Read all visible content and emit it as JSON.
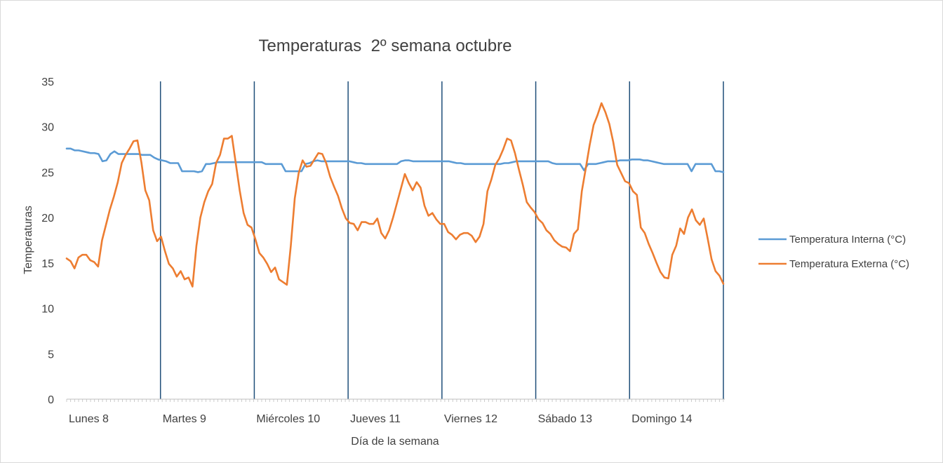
{
  "chart_data": {
    "type": "line",
    "title": "Temperaturas  2º semana octubre",
    "xlabel": "Día de la semana",
    "ylabel": "Temperaturas",
    "ylim": [
      0,
      35
    ],
    "yticks": [
      0,
      5,
      10,
      15,
      20,
      25,
      30,
      35
    ],
    "grid": false,
    "legend_position": "right",
    "day_labels": [
      "Lunes 8",
      "Martes 9",
      "Miércoles 10",
      "Jueves 11",
      "Viernes 12",
      "Sábado 13",
      "Domingo 14"
    ],
    "day_separators": true,
    "series": [
      {
        "name": "Temperatura Interna (°C)",
        "color": "#5b9bd5",
        "values": [
          27.6,
          27.6,
          27.4,
          27.4,
          27.3,
          27.2,
          27.1,
          27.1,
          27.0,
          26.2,
          26.3,
          27.0,
          27.3,
          27.0,
          27.0,
          27.0,
          27.0,
          27.0,
          27.0,
          26.9,
          26.9,
          26.9,
          26.6,
          26.4,
          26.3,
          26.2,
          26.0,
          26.0,
          26.0,
          25.1,
          25.1,
          25.1,
          25.1,
          25.0,
          25.1,
          25.9,
          25.9,
          26.0,
          26.1,
          26.1,
          26.1,
          26.1,
          26.1,
          26.1,
          26.1,
          26.1,
          26.1,
          26.1,
          26.1,
          26.1,
          25.9,
          25.9,
          25.9,
          25.9,
          25.9,
          25.1,
          25.1,
          25.1,
          25.1,
          25.1,
          25.9,
          26.0,
          26.2,
          26.3,
          26.2,
          26.2,
          26.2,
          26.2,
          26.2,
          26.2,
          26.2,
          26.2,
          26.1,
          26.0,
          26.0,
          25.9,
          25.9,
          25.9,
          25.9,
          25.9,
          25.9,
          25.9,
          25.9,
          25.9,
          26.2,
          26.3,
          26.3,
          26.2,
          26.2,
          26.2,
          26.2,
          26.2,
          26.2,
          26.2,
          26.2,
          26.2,
          26.2,
          26.1,
          26.0,
          26.0,
          25.9,
          25.9,
          25.9,
          25.9,
          25.9,
          25.9,
          25.9,
          25.9,
          25.9,
          25.9,
          26.0,
          26.0,
          26.1,
          26.2,
          26.2,
          26.2,
          26.2,
          26.2,
          26.2,
          26.2,
          26.2,
          26.2,
          26.0,
          25.9,
          25.9,
          25.9,
          25.9,
          25.9,
          25.9,
          25.9,
          25.2,
          25.9,
          25.9,
          25.9,
          26.0,
          26.1,
          26.2,
          26.2,
          26.2,
          26.3,
          26.3,
          26.3,
          26.4,
          26.4,
          26.4,
          26.3,
          26.3,
          26.2,
          26.1,
          26.0,
          25.9,
          25.9,
          25.9,
          25.9,
          25.9,
          25.9,
          25.9,
          25.1,
          25.9,
          25.9,
          25.9,
          25.9,
          25.9,
          25.1,
          25.1,
          25.0
        ]
      },
      {
        "name": "Temperatura Externa (°C)",
        "color": "#ed7d31",
        "values": [
          15.5,
          15.2,
          14.4,
          15.6,
          15.9,
          15.9,
          15.3,
          15.1,
          14.6,
          17.5,
          19.2,
          20.9,
          22.3,
          23.9,
          26.0,
          26.9,
          27.6,
          28.4,
          28.5,
          26.1,
          23.0,
          21.9,
          18.6,
          17.4,
          17.9,
          16.3,
          14.9,
          14.4,
          13.5,
          14.1,
          13.2,
          13.4,
          12.4,
          16.9,
          20.0,
          21.7,
          22.9,
          23.7,
          26.0,
          26.9,
          28.7,
          28.7,
          29.0,
          26.0,
          23.0,
          20.5,
          19.2,
          18.9,
          17.6,
          16.1,
          15.6,
          14.9,
          14.0,
          14.5,
          13.2,
          12.9,
          12.6,
          16.9,
          22.1,
          24.9,
          26.3,
          25.6,
          25.7,
          26.4,
          27.1,
          27.0,
          26.0,
          24.5,
          23.4,
          22.4,
          21.0,
          19.9,
          19.4,
          19.3,
          18.6,
          19.5,
          19.5,
          19.3,
          19.3,
          19.9,
          18.3,
          17.7,
          18.6,
          20.0,
          21.6,
          23.2,
          24.8,
          23.8,
          23.0,
          23.9,
          23.3,
          21.3,
          20.2,
          20.5,
          19.8,
          19.3,
          19.3,
          18.4,
          18.1,
          17.6,
          18.1,
          18.3,
          18.3,
          18.0,
          17.3,
          17.9,
          19.3,
          22.9,
          24.2,
          25.8,
          26.5,
          27.5,
          28.7,
          28.5,
          27.1,
          25.3,
          23.6,
          21.7,
          21.1,
          20.6,
          19.8,
          19.4,
          18.6,
          18.2,
          17.5,
          17.1,
          16.8,
          16.7,
          16.3,
          18.2,
          18.7,
          22.9,
          25.4,
          28.0,
          30.2,
          31.3,
          32.6,
          31.6,
          30.3,
          28.3,
          25.8,
          24.9,
          24.0,
          23.8,
          22.9,
          22.5,
          18.9,
          18.3,
          17.1,
          16.1,
          15.0,
          14.0,
          13.4,
          13.3,
          15.9,
          16.9,
          18.8,
          18.2,
          20.0,
          20.9,
          19.7,
          19.2,
          19.9,
          17.7,
          15.4,
          14.1,
          13.6,
          12.7
        ]
      }
    ]
  }
}
